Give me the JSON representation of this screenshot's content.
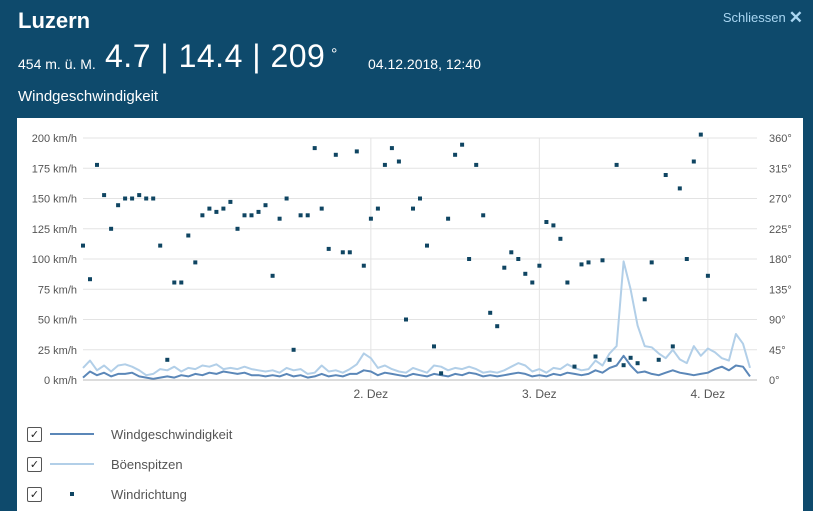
{
  "header": {
    "station": "Luzern",
    "close_label": "Schliessen",
    "close_icon": "close-icon",
    "altitude": "454 m. ü. M.",
    "readings": "4.7 | 14.4 | 209",
    "degree": "°",
    "timestamp": "04.12.2018, 12:40",
    "chart_title": "Windgeschwindigkeit"
  },
  "colors": {
    "background": "#0e4a6c",
    "speed": "#5b87b8",
    "gust": "#b2cfe8",
    "direction": "#0f4562",
    "close": "#a9d6f2"
  },
  "chart_data": {
    "type": "line",
    "x_unit": "hours since first reading",
    "x_ticks": [
      {
        "x": 41,
        "label": "2. Dez"
      },
      {
        "x": 65,
        "label": "3. Dez"
      },
      {
        "x": 89,
        "label": "4. Dez"
      }
    ],
    "xlim": [
      0,
      96
    ],
    "ylim": [
      0,
      200
    ],
    "y_ticks": [
      "0 km/h",
      "25 km/h",
      "50 km/h",
      "75 km/h",
      "100 km/h",
      "125 km/h",
      "150 km/h",
      "175 km/h",
      "200 km/h"
    ],
    "y2lim": [
      0,
      360
    ],
    "y2_ticks": [
      "0°",
      "45°",
      "90°",
      "135°",
      "180°",
      "225°",
      "270°",
      "315°",
      "360°"
    ],
    "grid": true,
    "series": [
      {
        "name": "Windgeschwindigkeit",
        "axis": "left",
        "style": "line",
        "values": [
          [
            0,
            2
          ],
          [
            1,
            7
          ],
          [
            2,
            4
          ],
          [
            3,
            6
          ],
          [
            4,
            3
          ],
          [
            5,
            5
          ],
          [
            6,
            5
          ],
          [
            7,
            6
          ],
          [
            8,
            3
          ],
          [
            9,
            2
          ],
          [
            10,
            1
          ],
          [
            11,
            2
          ],
          [
            12,
            3
          ],
          [
            13,
            2
          ],
          [
            14,
            4
          ],
          [
            15,
            3
          ],
          [
            16,
            5
          ],
          [
            17,
            4
          ],
          [
            18,
            6
          ],
          [
            19,
            5
          ],
          [
            20,
            7
          ],
          [
            21,
            6
          ],
          [
            22,
            5
          ],
          [
            23,
            6
          ],
          [
            24,
            4
          ],
          [
            25,
            4
          ],
          [
            26,
            3
          ],
          [
            27,
            4
          ],
          [
            28,
            3
          ],
          [
            29,
            5
          ],
          [
            30,
            3
          ],
          [
            31,
            4
          ],
          [
            32,
            2
          ],
          [
            33,
            3
          ],
          [
            34,
            5
          ],
          [
            35,
            3
          ],
          [
            36,
            4
          ],
          [
            37,
            3
          ],
          [
            38,
            5
          ],
          [
            39,
            5
          ],
          [
            40,
            8
          ],
          [
            41,
            7
          ],
          [
            42,
            4
          ],
          [
            43,
            6
          ],
          [
            44,
            5
          ],
          [
            45,
            4
          ],
          [
            46,
            3
          ],
          [
            47,
            5
          ],
          [
            48,
            4
          ],
          [
            49,
            3
          ],
          [
            50,
            5
          ],
          [
            51,
            4
          ],
          [
            52,
            3
          ],
          [
            53,
            5
          ],
          [
            54,
            4
          ],
          [
            55,
            6
          ],
          [
            56,
            5
          ],
          [
            57,
            3
          ],
          [
            58,
            4
          ],
          [
            59,
            3
          ],
          [
            60,
            4
          ],
          [
            61,
            5
          ],
          [
            62,
            6
          ],
          [
            63,
            5
          ],
          [
            64,
            3
          ],
          [
            65,
            4
          ],
          [
            66,
            3
          ],
          [
            67,
            5
          ],
          [
            68,
            4
          ],
          [
            69,
            6
          ],
          [
            70,
            5
          ],
          [
            71,
            4
          ],
          [
            72,
            5
          ],
          [
            73,
            8
          ],
          [
            74,
            6
          ],
          [
            75,
            10
          ],
          [
            76,
            12
          ],
          [
            77,
            20
          ],
          [
            78,
            12
          ],
          [
            79,
            6
          ],
          [
            80,
            7
          ],
          [
            81,
            5
          ],
          [
            82,
            4
          ],
          [
            83,
            6
          ],
          [
            84,
            8
          ],
          [
            85,
            6
          ],
          [
            86,
            5
          ],
          [
            87,
            4
          ],
          [
            88,
            5
          ],
          [
            89,
            6
          ],
          [
            90,
            9
          ],
          [
            91,
            11
          ],
          [
            92,
            8
          ],
          [
            93,
            12
          ],
          [
            94,
            11
          ],
          [
            95,
            3
          ]
        ]
      },
      {
        "name": "Böenspitzen",
        "axis": "left",
        "style": "line",
        "values": [
          [
            0,
            10
          ],
          [
            1,
            16
          ],
          [
            2,
            8
          ],
          [
            3,
            12
          ],
          [
            4,
            7
          ],
          [
            5,
            12
          ],
          [
            6,
            13
          ],
          [
            7,
            11
          ],
          [
            8,
            8
          ],
          [
            9,
            4
          ],
          [
            10,
            5
          ],
          [
            11,
            9
          ],
          [
            12,
            8
          ],
          [
            13,
            11
          ],
          [
            14,
            7
          ],
          [
            15,
            10
          ],
          [
            16,
            9
          ],
          [
            17,
            12
          ],
          [
            18,
            11
          ],
          [
            19,
            13
          ],
          [
            20,
            9
          ],
          [
            21,
            10
          ],
          [
            22,
            9
          ],
          [
            23,
            11
          ],
          [
            24,
            9
          ],
          [
            25,
            8
          ],
          [
            26,
            7
          ],
          [
            27,
            8
          ],
          [
            28,
            6
          ],
          [
            29,
            10
          ],
          [
            30,
            8
          ],
          [
            31,
            9
          ],
          [
            32,
            5
          ],
          [
            33,
            6
          ],
          [
            34,
            12
          ],
          [
            35,
            7
          ],
          [
            36,
            8
          ],
          [
            37,
            6
          ],
          [
            38,
            9
          ],
          [
            39,
            13
          ],
          [
            40,
            22
          ],
          [
            41,
            18
          ],
          [
            42,
            10
          ],
          [
            43,
            12
          ],
          [
            44,
            9
          ],
          [
            45,
            7
          ],
          [
            46,
            6
          ],
          [
            47,
            10
          ],
          [
            48,
            8
          ],
          [
            49,
            6
          ],
          [
            50,
            12
          ],
          [
            51,
            11
          ],
          [
            52,
            8
          ],
          [
            53,
            10
          ],
          [
            54,
            9
          ],
          [
            55,
            11
          ],
          [
            56,
            9
          ],
          [
            57,
            6
          ],
          [
            58,
            7
          ],
          [
            59,
            6
          ],
          [
            60,
            8
          ],
          [
            61,
            11
          ],
          [
            62,
            14
          ],
          [
            63,
            12
          ],
          [
            64,
            7
          ],
          [
            65,
            9
          ],
          [
            66,
            6
          ],
          [
            67,
            10
          ],
          [
            68,
            9
          ],
          [
            69,
            13
          ],
          [
            70,
            10
          ],
          [
            71,
            8
          ],
          [
            72,
            9
          ],
          [
            73,
            16
          ],
          [
            74,
            12
          ],
          [
            75,
            22
          ],
          [
            76,
            28
          ],
          [
            77,
            98
          ],
          [
            78,
            75
          ],
          [
            79,
            45
          ],
          [
            80,
            28
          ],
          [
            81,
            27
          ],
          [
            82,
            22
          ],
          [
            83,
            18
          ],
          [
            84,
            25
          ],
          [
            85,
            17
          ],
          [
            86,
            14
          ],
          [
            87,
            28
          ],
          [
            88,
            20
          ],
          [
            89,
            26
          ],
          [
            90,
            23
          ],
          [
            91,
            18
          ],
          [
            92,
            16
          ],
          [
            93,
            38
          ],
          [
            94,
            30
          ],
          [
            95,
            10
          ]
        ]
      },
      {
        "name": "Windrichtung",
        "axis": "right",
        "style": "points",
        "values": [
          [
            0,
            200
          ],
          [
            1,
            150
          ],
          [
            2,
            320
          ],
          [
            3,
            275
          ],
          [
            4,
            225
          ],
          [
            5,
            260
          ],
          [
            6,
            270
          ],
          [
            7,
            270
          ],
          [
            8,
            275
          ],
          [
            9,
            270
          ],
          [
            10,
            270
          ],
          [
            11,
            200
          ],
          [
            12,
            30
          ],
          [
            13,
            145
          ],
          [
            14,
            145
          ],
          [
            15,
            215
          ],
          [
            16,
            175
          ],
          [
            17,
            245
          ],
          [
            18,
            255
          ],
          [
            19,
            250
          ],
          [
            20,
            255
          ],
          [
            21,
            265
          ],
          [
            22,
            225
          ],
          [
            23,
            245
          ],
          [
            24,
            245
          ],
          [
            25,
            250
          ],
          [
            26,
            260
          ],
          [
            27,
            155
          ],
          [
            28,
            240
          ],
          [
            29,
            270
          ],
          [
            30,
            45
          ],
          [
            31,
            245
          ],
          [
            32,
            245
          ],
          [
            33,
            345
          ],
          [
            34,
            255
          ],
          [
            35,
            195
          ],
          [
            36,
            335
          ],
          [
            37,
            190
          ],
          [
            38,
            190
          ],
          [
            39,
            340
          ],
          [
            40,
            170
          ],
          [
            41,
            240
          ],
          [
            42,
            255
          ],
          [
            43,
            320
          ],
          [
            44,
            345
          ],
          [
            45,
            325
          ],
          [
            46,
            90
          ],
          [
            47,
            255
          ],
          [
            48,
            270
          ],
          [
            49,
            200
          ],
          [
            50,
            50
          ],
          [
            51,
            10
          ],
          [
            52,
            240
          ],
          [
            53,
            335
          ],
          [
            54,
            350
          ],
          [
            55,
            180
          ],
          [
            56,
            320
          ],
          [
            57,
            245
          ],
          [
            58,
            100
          ],
          [
            59,
            80
          ],
          [
            60,
            167
          ],
          [
            61,
            190
          ],
          [
            62,
            180
          ],
          [
            63,
            158
          ],
          [
            64,
            145
          ],
          [
            65,
            170
          ],
          [
            66,
            235
          ],
          [
            67,
            230
          ],
          [
            68,
            210
          ],
          [
            69,
            145
          ],
          [
            70,
            20
          ],
          [
            71,
            172
          ],
          [
            72,
            175
          ],
          [
            73,
            35
          ],
          [
            74,
            178
          ],
          [
            75,
            30
          ],
          [
            76,
            320
          ],
          [
            77,
            22
          ],
          [
            78,
            33
          ],
          [
            79,
            25
          ],
          [
            80,
            120
          ],
          [
            81,
            175
          ],
          [
            82,
            30
          ],
          [
            83,
            305
          ],
          [
            84,
            50
          ],
          [
            85,
            285
          ],
          [
            86,
            180
          ],
          [
            87,
            325
          ],
          [
            88,
            365
          ],
          [
            89,
            155
          ]
        ]
      }
    ]
  },
  "legend": [
    {
      "label": "Windgeschwindigkeit",
      "checked": "✓",
      "marker": "line",
      "color": "#5b87b8"
    },
    {
      "label": "Böenspitzen",
      "checked": "✓",
      "marker": "line",
      "color": "#b2cfe8"
    },
    {
      "label": "Windrichtung",
      "checked": "✓",
      "marker": "point",
      "color": "#0f4562"
    }
  ]
}
